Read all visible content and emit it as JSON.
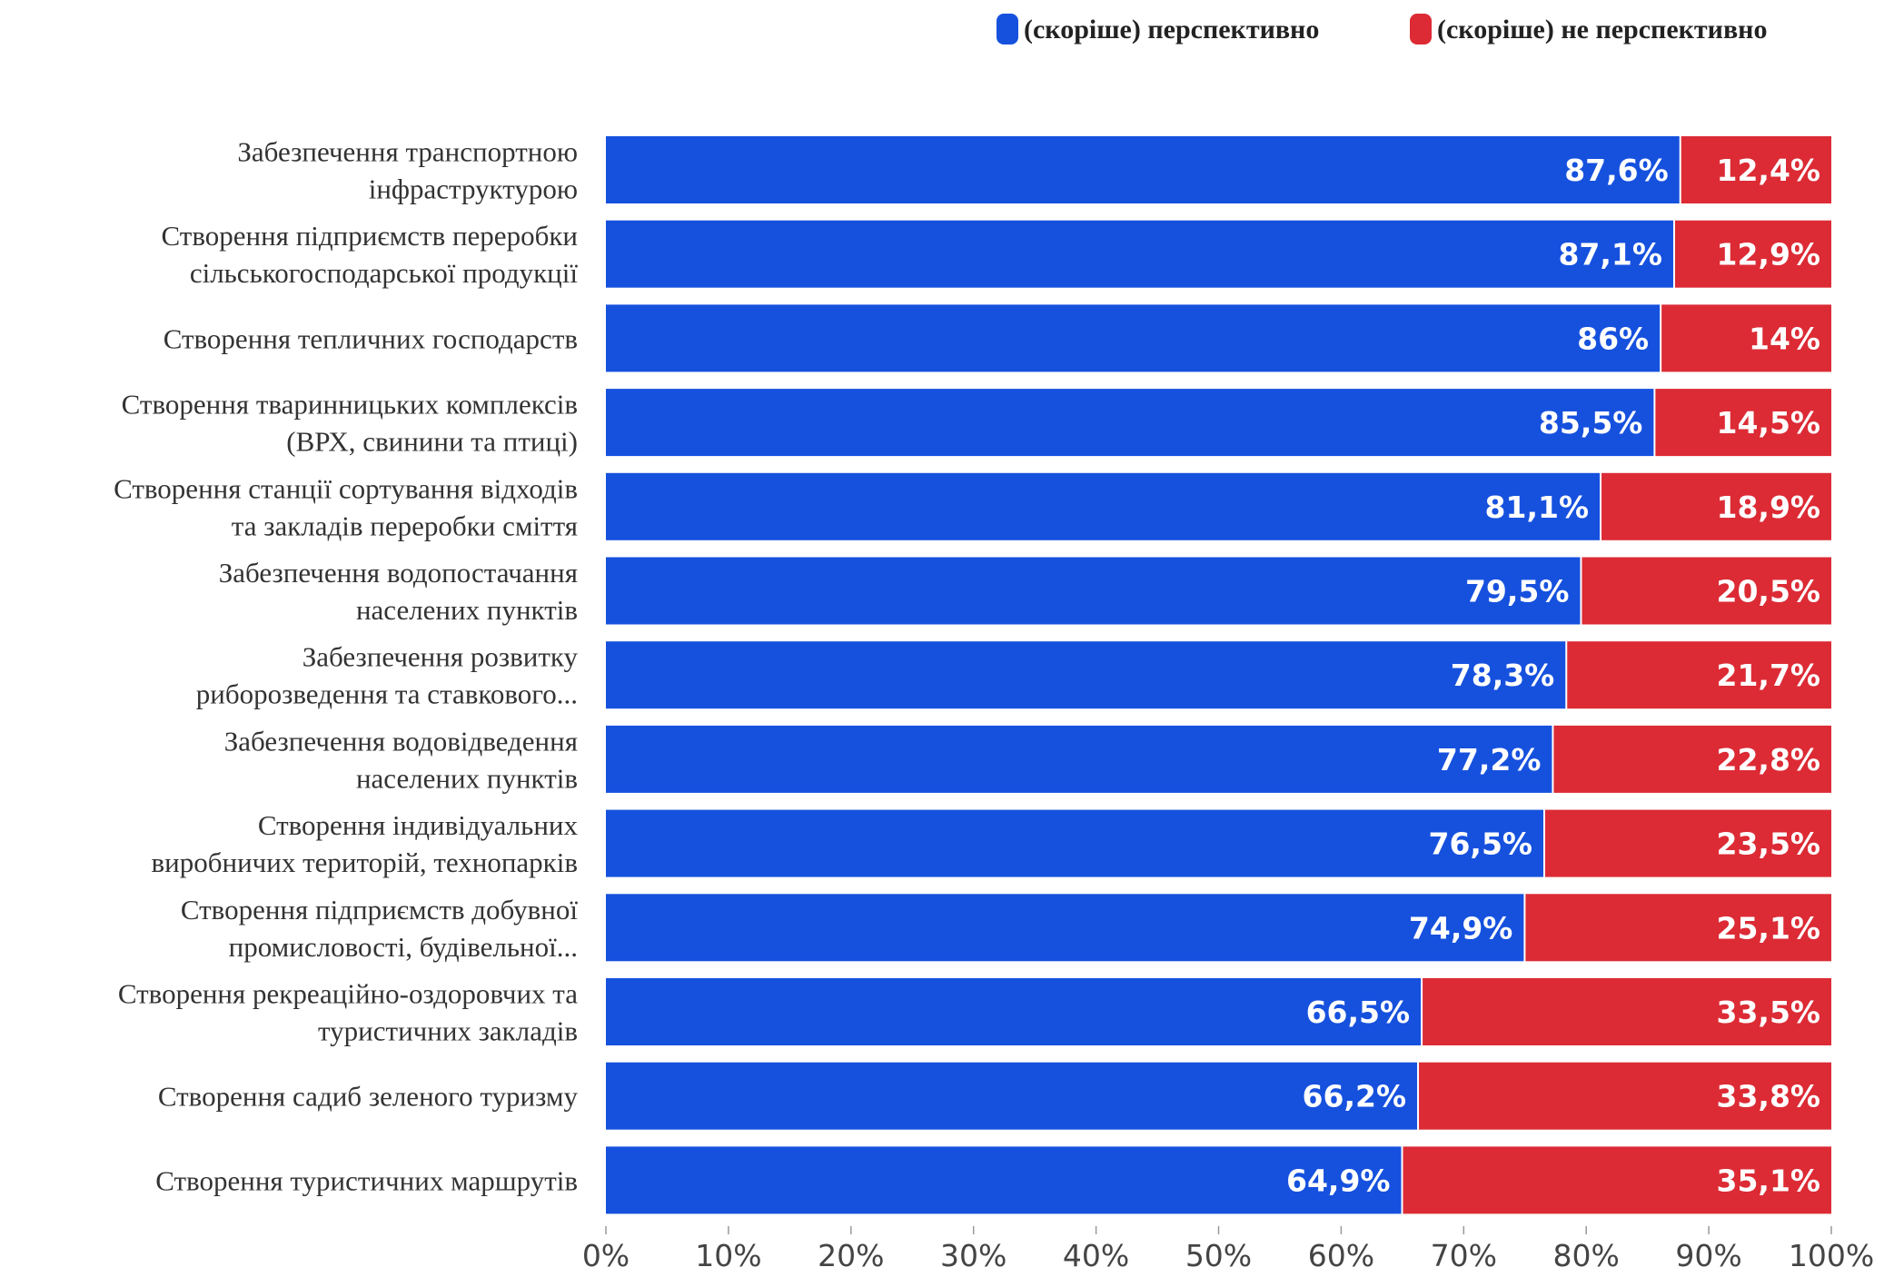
{
  "chart_data": {
    "type": "bar",
    "orientation": "horizontal",
    "stacked": true,
    "categories": [
      [
        "Забезпечення транспортною",
        "інфраструктурою"
      ],
      [
        "Створення підприємств переробки",
        "сільськогосподарської продукції"
      ],
      [
        "Створення тепличних господарств"
      ],
      [
        "Створення тваринницьких комплексів",
        "(ВРХ, свинини та птиці)"
      ],
      [
        "Створення станції сортування відходів",
        "та закладів переробки сміття"
      ],
      [
        "Забезпечення водопостачання",
        "населених пунктів"
      ],
      [
        "Забезпечення розвитку",
        "риборозведення та ставкового..."
      ],
      [
        "Забезпечення водовідведення",
        "населених пунктів"
      ],
      [
        "Створення індивідуальних",
        "виробничих територій, технопарків"
      ],
      [
        "Створення підприємств добувної",
        "промисловості, будівельної..."
      ],
      [
        "Створення рекреаційно-оздоровчих та",
        "туристичних закладів"
      ],
      [
        "Створення садиб зеленого туризму"
      ],
      [
        "Створення туристичних маршрутів"
      ]
    ],
    "series": [
      {
        "name": "(скоріше) перспективно",
        "color": "#1651de",
        "values": [
          87.6,
          87.1,
          86,
          85.5,
          81.1,
          79.5,
          78.3,
          77.2,
          76.5,
          74.9,
          66.5,
          66.2,
          64.9
        ],
        "labels": [
          "87,6%",
          "87,1%",
          "86%",
          "85,5%",
          "81,1%",
          "79,5%",
          "78,3%",
          "77,2%",
          "76,5%",
          "74,9%",
          "66,5%",
          "66,2%",
          "64,9%"
        ]
      },
      {
        "name": "(скоріше) не перспективно",
        "color": "#dc2b35",
        "values": [
          12.4,
          12.9,
          14,
          14.5,
          18.9,
          20.5,
          21.7,
          22.8,
          23.5,
          25.1,
          33.5,
          33.8,
          35.1
        ],
        "labels": [
          "12,4%",
          "12,9%",
          "14%",
          "14,5%",
          "18,9%",
          "20,5%",
          "21,7%",
          "22,8%",
          "23,5%",
          "25,1%",
          "33,5%",
          "33,8%",
          "35,1%"
        ]
      }
    ],
    "x_ticks": [
      "0%",
      "10%",
      "20%",
      "30%",
      "40%",
      "50%",
      "60%",
      "70%",
      "80%",
      "90%",
      "100%"
    ],
    "xlim": [
      0,
      100
    ],
    "grid": false,
    "legend_position": "top-right"
  }
}
